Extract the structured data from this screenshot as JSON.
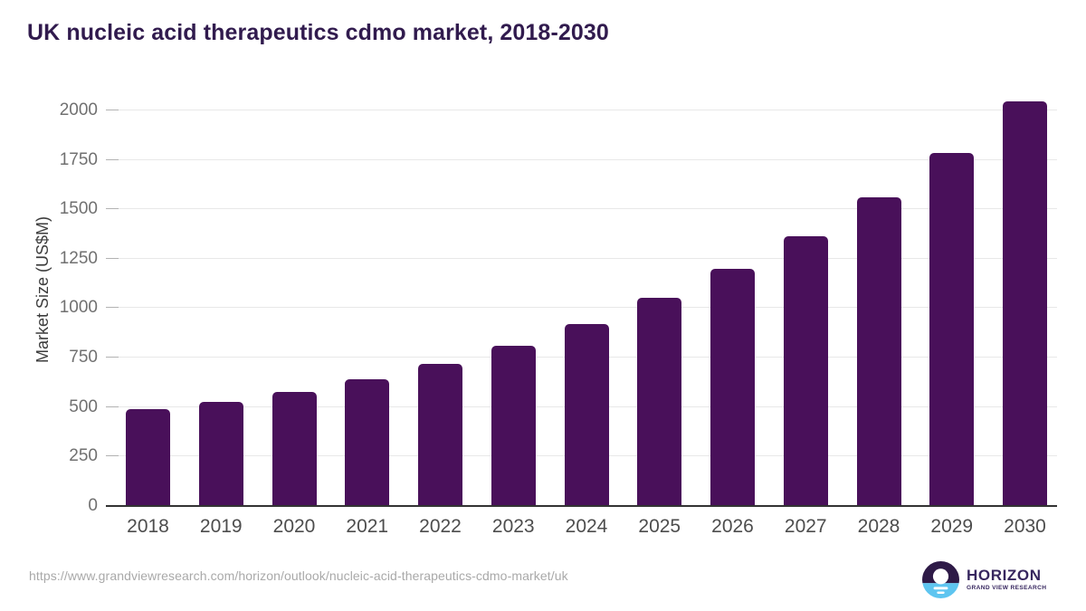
{
  "chart": {
    "title": "UK nucleic acid therapeutics cdmo market, 2018-2030",
    "ylabel": "Market Size (US$M)"
  },
  "chart_data": {
    "type": "bar",
    "title": "UK nucleic acid therapeutics cdmo market, 2018-2030",
    "xlabel": "",
    "ylabel": "Market Size (US$M)",
    "categories": [
      "2018",
      "2019",
      "2020",
      "2021",
      "2022",
      "2023",
      "2024",
      "2025",
      "2026",
      "2027",
      "2028",
      "2029",
      "2030"
    ],
    "values": [
      490,
      525,
      575,
      640,
      720,
      810,
      920,
      1050,
      1200,
      1365,
      1560,
      1785,
      2045
    ],
    "y_ticks": [
      0,
      250,
      500,
      750,
      1000,
      1250,
      1500,
      1750,
      2000
    ],
    "ylim": [
      0,
      2100
    ],
    "grid": "horizontal",
    "legend": "none",
    "bar_color": "#49105a"
  },
  "footer": {
    "source_url": "https://www.grandviewresearch.com/horizon/outlook/nucleic-acid-therapeutics-cdmo-market/uk",
    "logo_title": "HORIZON",
    "logo_subtitle": "GRAND VIEW RESEARCH"
  },
  "colors": {
    "bar": "#49105a",
    "title": "#311b4e",
    "logo_dark_purple": "#2e1a47",
    "logo_blue": "#5ec5f0",
    "logo_text_purple": "#37275f",
    "axis_line": "#333333",
    "gridline": "#e8e8e8"
  }
}
